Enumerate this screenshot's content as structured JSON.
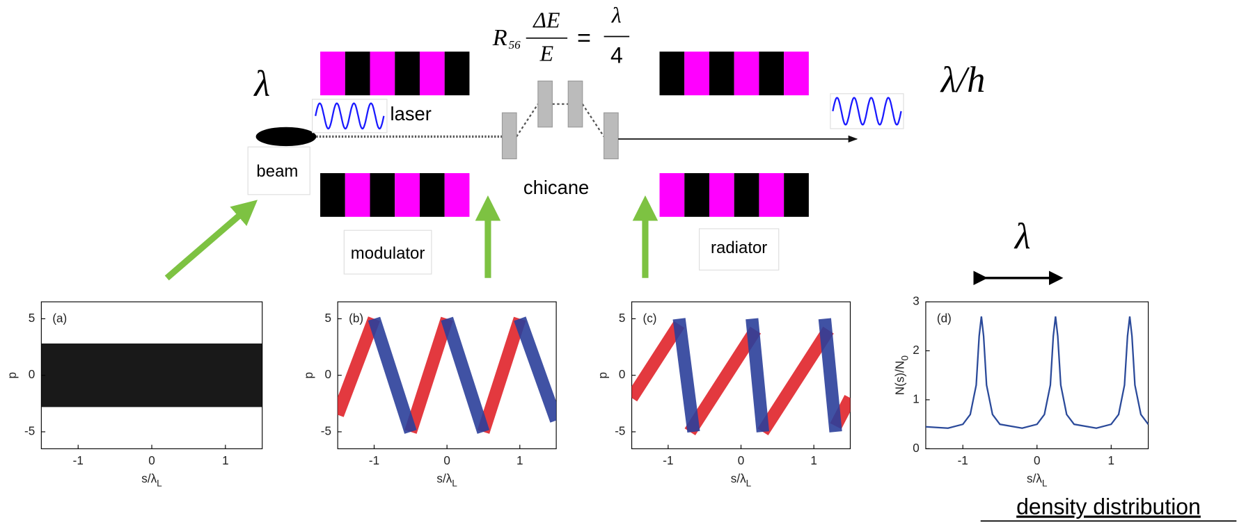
{
  "labels": {
    "source_wavelength": "λ",
    "output_wavelength": "λ/h",
    "laser": "laser",
    "beam": "beam",
    "chicane": "chicane",
    "modulator": "modulator",
    "radiator": "radiator",
    "period": "λ",
    "caption": "density distribution"
  },
  "equation": {
    "symbol": "R",
    "symbol_sub": "56",
    "numerator": "ΔE",
    "denominator": "E",
    "equals": "=",
    "rhs_numerator": "λ",
    "rhs_denominator": "4"
  },
  "panels": [
    {
      "label": "(a)",
      "y_label": "p",
      "x_label": "s/λ",
      "x_label_sub": "L",
      "xlim": [
        -1.5,
        1.5
      ],
      "ylim": [
        -6.5,
        6.5
      ],
      "xticks": [
        -1,
        0,
        1
      ],
      "yticks": [
        -5,
        0,
        5
      ],
      "series": [
        {
          "color": "#000000",
          "x": [
            -1.5,
            1.5
          ],
          "y": [
            0,
            0
          ]
        }
      ]
    },
    {
      "label": "(b)",
      "y_label": "p",
      "x_label": "s/λ",
      "x_label_sub": "L",
      "xlim": [
        -1.5,
        1.5
      ],
      "ylim": [
        -6.5,
        6.5
      ],
      "xticks": [
        -1,
        0,
        1
      ],
      "yticks": [
        -5,
        0,
        5
      ],
      "series": [
        {
          "color": "#e0242a",
          "x": [
            -1.5,
            -1,
            null,
            -0.5,
            0,
            null,
            0.5,
            1
          ],
          "y": [
            -3.5,
            5,
            null,
            -5,
            5,
            null,
            -5,
            5
          ]
        },
        {
          "color": "#2b3f9a",
          "x": [
            -1,
            -0.5,
            null,
            0,
            0.5,
            null,
            1,
            1.5
          ],
          "y": [
            5,
            -5,
            null,
            5,
            -5,
            null,
            5,
            -4
          ]
        }
      ]
    },
    {
      "label": "(c)",
      "y_label": "p",
      "x_label": "s/λ",
      "x_label_sub": "L",
      "xlim": [
        -1.5,
        1.5
      ],
      "ylim": [
        -6.5,
        6.5
      ],
      "xticks": [
        -1,
        0,
        1
      ],
      "yticks": [
        -5,
        0,
        5
      ],
      "series": [
        {
          "color": "#e0242a",
          "x": [
            -1.5,
            -0.85,
            null,
            -0.7,
            0.2,
            null,
            0.3,
            1.2,
            null,
            1.3,
            1.5
          ],
          "y": [
            -2,
            4.5,
            null,
            -5,
            4,
            null,
            -5,
            4,
            null,
            -4.5,
            -2
          ]
        },
        {
          "color": "#2b3f9a",
          "x": [
            -0.85,
            -0.65,
            null,
            0.15,
            0.3,
            null,
            1.15,
            1.3
          ],
          "y": [
            5,
            -5,
            null,
            5,
            -5,
            null,
            5,
            -5
          ]
        }
      ]
    },
    {
      "label": "(d)",
      "y_label": "N(s)/N",
      "y_label_sub": "0",
      "x_label": "s/λ",
      "x_label_sub": "L",
      "xlim": [
        -1.5,
        1.5
      ],
      "ylim": [
        0,
        3
      ],
      "xticks": [
        -1,
        0,
        1
      ],
      "yticks": [
        0,
        1,
        2,
        3
      ],
      "series": [
        {
          "color": "#2b4a9a",
          "x": [
            -1.5,
            -1.2,
            -1.0,
            -0.9,
            -0.82,
            -0.78,
            -0.75,
            -0.72,
            -0.68,
            -0.6,
            -0.5,
            -0.2,
            0.0,
            0.1,
            0.18,
            0.22,
            0.25,
            0.28,
            0.32,
            0.4,
            0.5,
            0.8,
            1.0,
            1.1,
            1.18,
            1.22,
            1.25,
            1.28,
            1.32,
            1.4,
            1.5
          ],
          "y": [
            0.45,
            0.42,
            0.5,
            0.7,
            1.3,
            2.3,
            2.7,
            2.3,
            1.3,
            0.7,
            0.5,
            0.42,
            0.5,
            0.7,
            1.3,
            2.3,
            2.7,
            2.3,
            1.3,
            0.7,
            0.5,
            0.42,
            0.5,
            0.7,
            1.3,
            2.3,
            2.7,
            2.3,
            1.3,
            0.7,
            0.5
          ]
        }
      ]
    }
  ]
}
